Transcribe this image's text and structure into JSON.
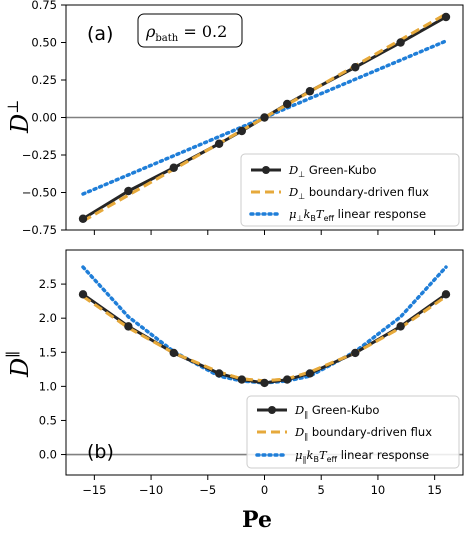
{
  "colors": {
    "green_kubo": "#262626",
    "boundary_flux": "#E6A93B",
    "linear_response": "#1F7ED8",
    "zero_line": "#808080"
  },
  "chart_data": [
    {
      "panel": "a",
      "type": "line",
      "panel_label": "(a)",
      "annotation": "ρ_bath = 0.2",
      "ylabel": "D^⊥",
      "xlabel": "",
      "xlim": [
        -17.5,
        17.5
      ],
      "ylim": [
        -0.75,
        0.75
      ],
      "xticks": [
        -15,
        -10,
        -5,
        0,
        5,
        10,
        15
      ],
      "yticks": [
        -0.75,
        -0.5,
        -0.25,
        0.0,
        0.25,
        0.5,
        0.75
      ],
      "ytick_labels": [
        "−0.75",
        "−0.50",
        "−0.25",
        "0.00",
        "0.25",
        "0.50",
        "0.75"
      ],
      "hline": 0,
      "legend_position": "lower-right",
      "series": [
        {
          "name": "D⊥ Green-Kubo",
          "style": "solid-markers",
          "x": [
            -16,
            -12,
            -8,
            -4,
            -2,
            0,
            2,
            4,
            8,
            12,
            16
          ],
          "y": [
            -0.675,
            -0.49,
            -0.335,
            -0.175,
            -0.09,
            0.0,
            0.09,
            0.175,
            0.335,
            0.5,
            0.67
          ]
        },
        {
          "name": "D⊥ boundary-driven flux",
          "style": "dashed",
          "x": [
            -16,
            16
          ],
          "y": [
            -0.69,
            0.69
          ]
        },
        {
          "name": "μ⊥ k_B T_eff linear response",
          "style": "dotted",
          "x": [
            -16,
            16
          ],
          "y": [
            -0.51,
            0.51
          ]
        }
      ]
    },
    {
      "panel": "b",
      "type": "line",
      "panel_label": "(b)",
      "ylabel": "D^∥",
      "xlabel": "Pe",
      "xlim": [
        -17.5,
        17.5
      ],
      "ylim": [
        -0.3,
        3.0
      ],
      "xticks": [
        -15,
        -10,
        -5,
        0,
        5,
        10,
        15
      ],
      "yticks": [
        0.0,
        0.5,
        1.0,
        1.5,
        2.0,
        2.5
      ],
      "ytick_labels": [
        "0.0",
        "0.5",
        "1.0",
        "1.5",
        "2.0",
        "2.5"
      ],
      "xtick_labels": [
        "−15",
        "−10",
        "−5",
        "0",
        "5",
        "10",
        "15"
      ],
      "hline": 0,
      "legend_position": "lower-right",
      "series": [
        {
          "name": "D∥ Green-Kubo",
          "style": "solid-markers",
          "x": [
            -16,
            -12,
            -8,
            -4,
            -2,
            0,
            2,
            4,
            8,
            12,
            16
          ],
          "y": [
            2.35,
            1.88,
            1.49,
            1.19,
            1.1,
            1.05,
            1.1,
            1.19,
            1.49,
            1.88,
            2.35
          ]
        },
        {
          "name": "D∥ boundary-driven flux",
          "style": "dashed",
          "x": [
            -16,
            -12,
            -8,
            -4,
            -2,
            0,
            2,
            4,
            8,
            12,
            16
          ],
          "y": [
            2.32,
            1.86,
            1.49,
            1.21,
            1.11,
            1.08,
            1.11,
            1.21,
            1.49,
            1.86,
            2.32
          ]
        },
        {
          "name": "μ∥ k_B T_eff linear response",
          "style": "dotted",
          "x": [
            -16,
            -12,
            -8,
            -4,
            -2,
            0,
            2,
            4,
            8,
            12,
            16
          ],
          "y": [
            2.75,
            2.02,
            1.51,
            1.15,
            1.08,
            1.05,
            1.08,
            1.15,
            1.51,
            2.02,
            2.75
          ]
        }
      ]
    }
  ]
}
